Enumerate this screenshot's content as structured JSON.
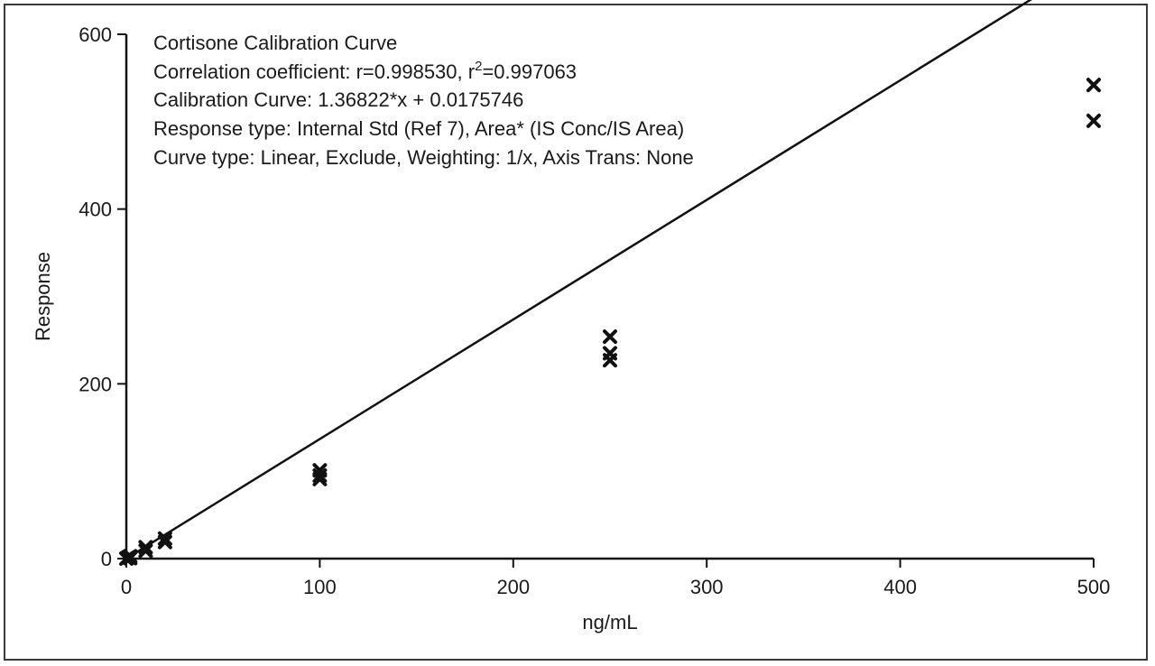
{
  "chart_data": {
    "type": "scatter",
    "title": "Cortisone Calibration Curve",
    "annotations": {
      "line1": "Cortisone Calibration Curve",
      "line2_prefix": "Correlation coefficient: r=0.998530, r",
      "line2_sup": "2",
      "line2_suffix": "=0.997063",
      "line3": "Calibration Curve: 1.36822*x + 0.0175746",
      "line4": "Response type: Internal Std (Ref 7), Area* (IS Conc/IS Area)",
      "line5": "Curve type: Linear, Exclude, Weighting: 1/x, Axis Trans: None"
    },
    "xlabel": "ng/mL",
    "ylabel": "Response",
    "xlim": [
      0,
      500
    ],
    "ylim": [
      0,
      600
    ],
    "xticks": [
      0,
      100,
      200,
      300,
      400,
      500
    ],
    "yticks": [
      0,
      200,
      400,
      600
    ],
    "fit": {
      "slope": 1.36822,
      "intercept": 0.0175746,
      "x_range": [
        0,
        500
      ]
    },
    "points": [
      {
        "x": 0,
        "y": 0
      },
      {
        "x": 1,
        "y": 1.4
      },
      {
        "x": 2,
        "y": 2.7
      },
      {
        "x": 2,
        "y": 0.5
      },
      {
        "x": 10,
        "y": 9
      },
      {
        "x": 10,
        "y": 13
      },
      {
        "x": 20,
        "y": 19
      },
      {
        "x": 20,
        "y": 23
      },
      {
        "x": 100,
        "y": 91
      },
      {
        "x": 100,
        "y": 95
      },
      {
        "x": 100,
        "y": 101
      },
      {
        "x": 250,
        "y": 227
      },
      {
        "x": 250,
        "y": 235
      },
      {
        "x": 250,
        "y": 254
      },
      {
        "x": 500,
        "y": 501
      },
      {
        "x": 500,
        "y": 542
      }
    ],
    "marker": "x",
    "marker_color": "#111111",
    "line_color": "#111111",
    "grid": false
  }
}
